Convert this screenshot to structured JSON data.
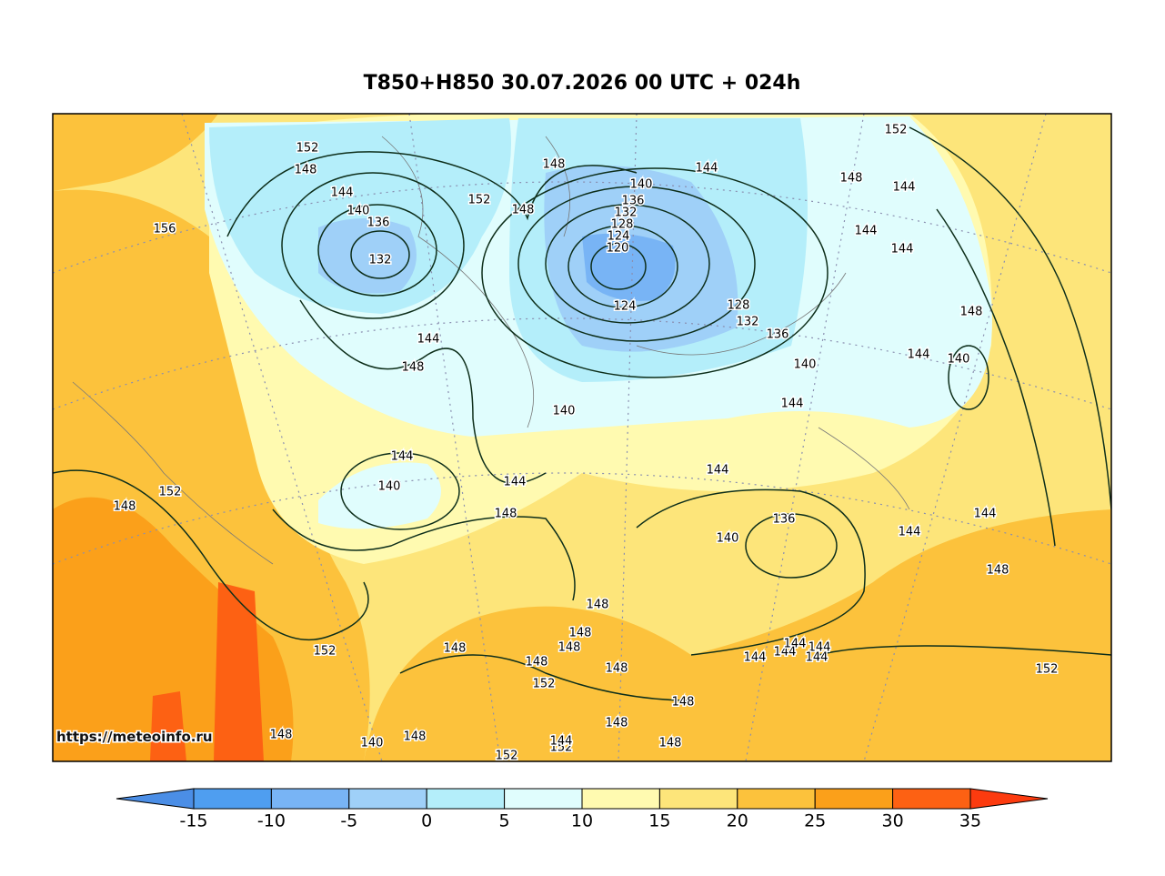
{
  "title": "T850+H850 30.07.2026 00 UTC + 024h",
  "watermark": "https://meteoinfo.ru",
  "colorbar": {
    "ticks": [
      -15,
      -10,
      -5,
      0,
      5,
      10,
      15,
      20,
      25,
      30,
      35
    ],
    "colors": [
      "#4b8ee6",
      "#4f9ef0",
      "#78b4f5",
      "#9fd0f8",
      "#b4eefa",
      "#e0fdfd",
      "#fffab0",
      "#fde57a",
      "#fcc23c",
      "#fba01a",
      "#fd6113",
      "#fc3b0f"
    ]
  },
  "contour_labels": [
    152,
    148,
    144,
    140,
    136,
    132,
    156,
    152,
    148,
    148,
    140,
    136,
    132,
    128,
    124,
    120,
    124,
    128,
    132,
    136,
    140,
    144,
    152,
    148,
    144,
    144,
    144,
    148,
    144,
    140,
    144,
    148,
    140,
    144,
    144,
    140,
    144,
    144,
    148,
    136,
    140,
    144,
    144,
    148,
    148,
    152,
    148,
    148,
    148,
    152,
    148,
    148,
    148,
    152,
    144,
    144,
    144,
    144,
    144,
    152,
    148,
    148,
    148,
    148,
    148,
    140,
    152,
    152,
    144
  ]
}
